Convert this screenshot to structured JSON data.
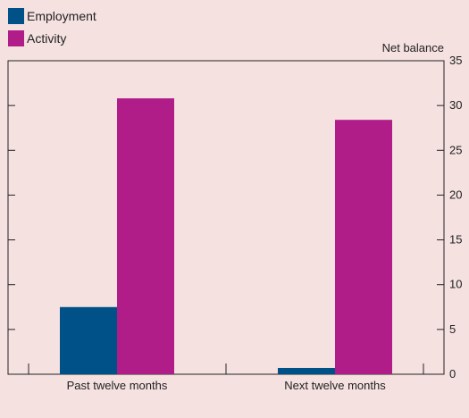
{
  "chart_data": {
    "type": "bar",
    "categories": [
      "Past twelve months",
      "Next twelve months"
    ],
    "series": [
      {
        "name": "Employment",
        "color": "#005187",
        "values": [
          7.5,
          0.7
        ]
      },
      {
        "name": "Activity",
        "color": "#b01c88",
        "values": [
          30.8,
          28.4
        ]
      }
    ],
    "ylabel": "Net balance",
    "ylim": [
      0,
      35
    ],
    "yticks": [
      0,
      5,
      10,
      15,
      20,
      25,
      30,
      35
    ],
    "y_axis_side": "right",
    "legend_position": "top-left",
    "grid": false
  },
  "colors": {
    "background": "#f4e1e0",
    "axis": "#222222"
  }
}
